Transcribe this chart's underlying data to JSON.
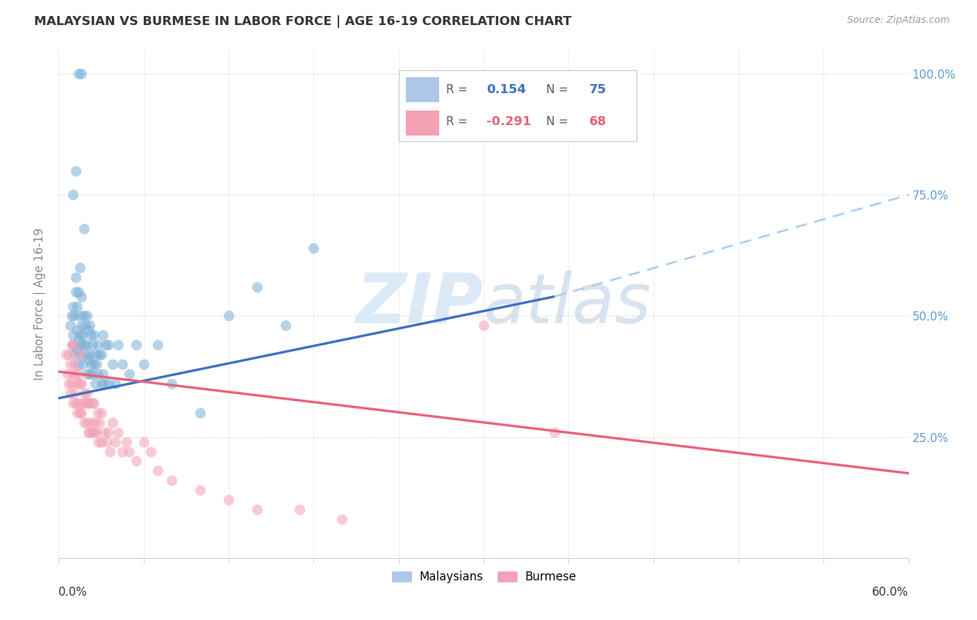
{
  "title": "MALAYSIAN VS BURMESE IN LABOR FORCE | AGE 16-19 CORRELATION CHART",
  "source": "Source: ZipAtlas.com",
  "ylabel": "In Labor Force | Age 16-19",
  "R_malaysian": 0.154,
  "N_malaysian": 75,
  "R_burmese": -0.291,
  "N_burmese": 68,
  "xlim": [
    0.0,
    0.6
  ],
  "ylim": [
    0.0,
    1.05
  ],
  "blue_color": "#7BAFD4",
  "pink_color": "#F4A0B5",
  "blue_line_color": "#3B6EBF",
  "pink_line_color": "#E8607A",
  "dash_color": "#AACCEE",
  "watermark_color": "#D8E8F5",
  "malaysian_x": [
    0.008,
    0.009,
    0.01,
    0.01,
    0.01,
    0.011,
    0.011,
    0.012,
    0.012,
    0.013,
    0.013,
    0.013,
    0.014,
    0.014,
    0.014,
    0.015,
    0.015,
    0.015,
    0.015,
    0.016,
    0.016,
    0.016,
    0.017,
    0.017,
    0.018,
    0.018,
    0.019,
    0.019,
    0.02,
    0.02,
    0.02,
    0.021,
    0.021,
    0.022,
    0.022,
    0.022,
    0.023,
    0.023,
    0.024,
    0.024,
    0.025,
    0.025,
    0.026,
    0.026,
    0.027,
    0.028,
    0.028,
    0.029,
    0.03,
    0.03,
    0.031,
    0.031,
    0.032,
    0.033,
    0.035,
    0.035,
    0.038,
    0.04,
    0.042,
    0.045,
    0.05,
    0.055,
    0.06,
    0.07,
    0.08,
    0.1,
    0.12,
    0.14,
    0.16,
    0.18,
    0.01,
    0.012,
    0.014,
    0.016,
    0.018
  ],
  "malaysian_y": [
    0.48,
    0.5,
    0.44,
    0.46,
    0.52,
    0.42,
    0.5,
    0.55,
    0.58,
    0.43,
    0.47,
    0.52,
    0.4,
    0.45,
    0.55,
    0.42,
    0.46,
    0.5,
    0.6,
    0.44,
    0.48,
    0.54,
    0.4,
    0.46,
    0.44,
    0.5,
    0.42,
    0.48,
    0.38,
    0.44,
    0.5,
    0.41,
    0.47,
    0.38,
    0.42,
    0.48,
    0.4,
    0.46,
    0.38,
    0.44,
    0.4,
    0.46,
    0.36,
    0.42,
    0.4,
    0.38,
    0.44,
    0.42,
    0.36,
    0.42,
    0.38,
    0.46,
    0.36,
    0.44,
    0.36,
    0.44,
    0.4,
    0.36,
    0.44,
    0.4,
    0.38,
    0.44,
    0.4,
    0.44,
    0.36,
    0.3,
    0.5,
    0.56,
    0.48,
    0.64,
    0.75,
    0.8,
    1.0,
    1.0,
    0.68
  ],
  "burmese_x": [
    0.005,
    0.006,
    0.007,
    0.007,
    0.008,
    0.008,
    0.009,
    0.009,
    0.01,
    0.01,
    0.01,
    0.011,
    0.011,
    0.012,
    0.012,
    0.013,
    0.013,
    0.014,
    0.014,
    0.015,
    0.015,
    0.015,
    0.016,
    0.016,
    0.017,
    0.018,
    0.018,
    0.019,
    0.02,
    0.02,
    0.021,
    0.021,
    0.022,
    0.022,
    0.023,
    0.024,
    0.024,
    0.025,
    0.025,
    0.026,
    0.027,
    0.028,
    0.028,
    0.029,
    0.03,
    0.03,
    0.032,
    0.034,
    0.035,
    0.036,
    0.038,
    0.04,
    0.042,
    0.045,
    0.048,
    0.05,
    0.055,
    0.06,
    0.065,
    0.07,
    0.08,
    0.1,
    0.12,
    0.14,
    0.17,
    0.2,
    0.3,
    0.35
  ],
  "burmese_y": [
    0.42,
    0.38,
    0.36,
    0.42,
    0.34,
    0.4,
    0.36,
    0.44,
    0.32,
    0.38,
    0.44,
    0.34,
    0.4,
    0.32,
    0.38,
    0.3,
    0.36,
    0.32,
    0.38,
    0.3,
    0.36,
    0.42,
    0.3,
    0.36,
    0.32,
    0.28,
    0.34,
    0.32,
    0.28,
    0.34,
    0.26,
    0.32,
    0.26,
    0.32,
    0.28,
    0.26,
    0.32,
    0.26,
    0.32,
    0.28,
    0.26,
    0.24,
    0.3,
    0.28,
    0.24,
    0.3,
    0.26,
    0.24,
    0.26,
    0.22,
    0.28,
    0.24,
    0.26,
    0.22,
    0.24,
    0.22,
    0.2,
    0.24,
    0.22,
    0.18,
    0.16,
    0.14,
    0.12,
    0.1,
    0.1,
    0.08,
    0.48,
    0.26
  ],
  "blue_line_x": [
    0.0,
    0.35
  ],
  "blue_line_y": [
    0.33,
    0.54
  ],
  "dash_line_x": [
    0.35,
    0.6
  ],
  "dash_line_y": [
    0.54,
    0.75
  ],
  "pink_line_x": [
    0.0,
    0.6
  ],
  "pink_line_y": [
    0.385,
    0.175
  ]
}
